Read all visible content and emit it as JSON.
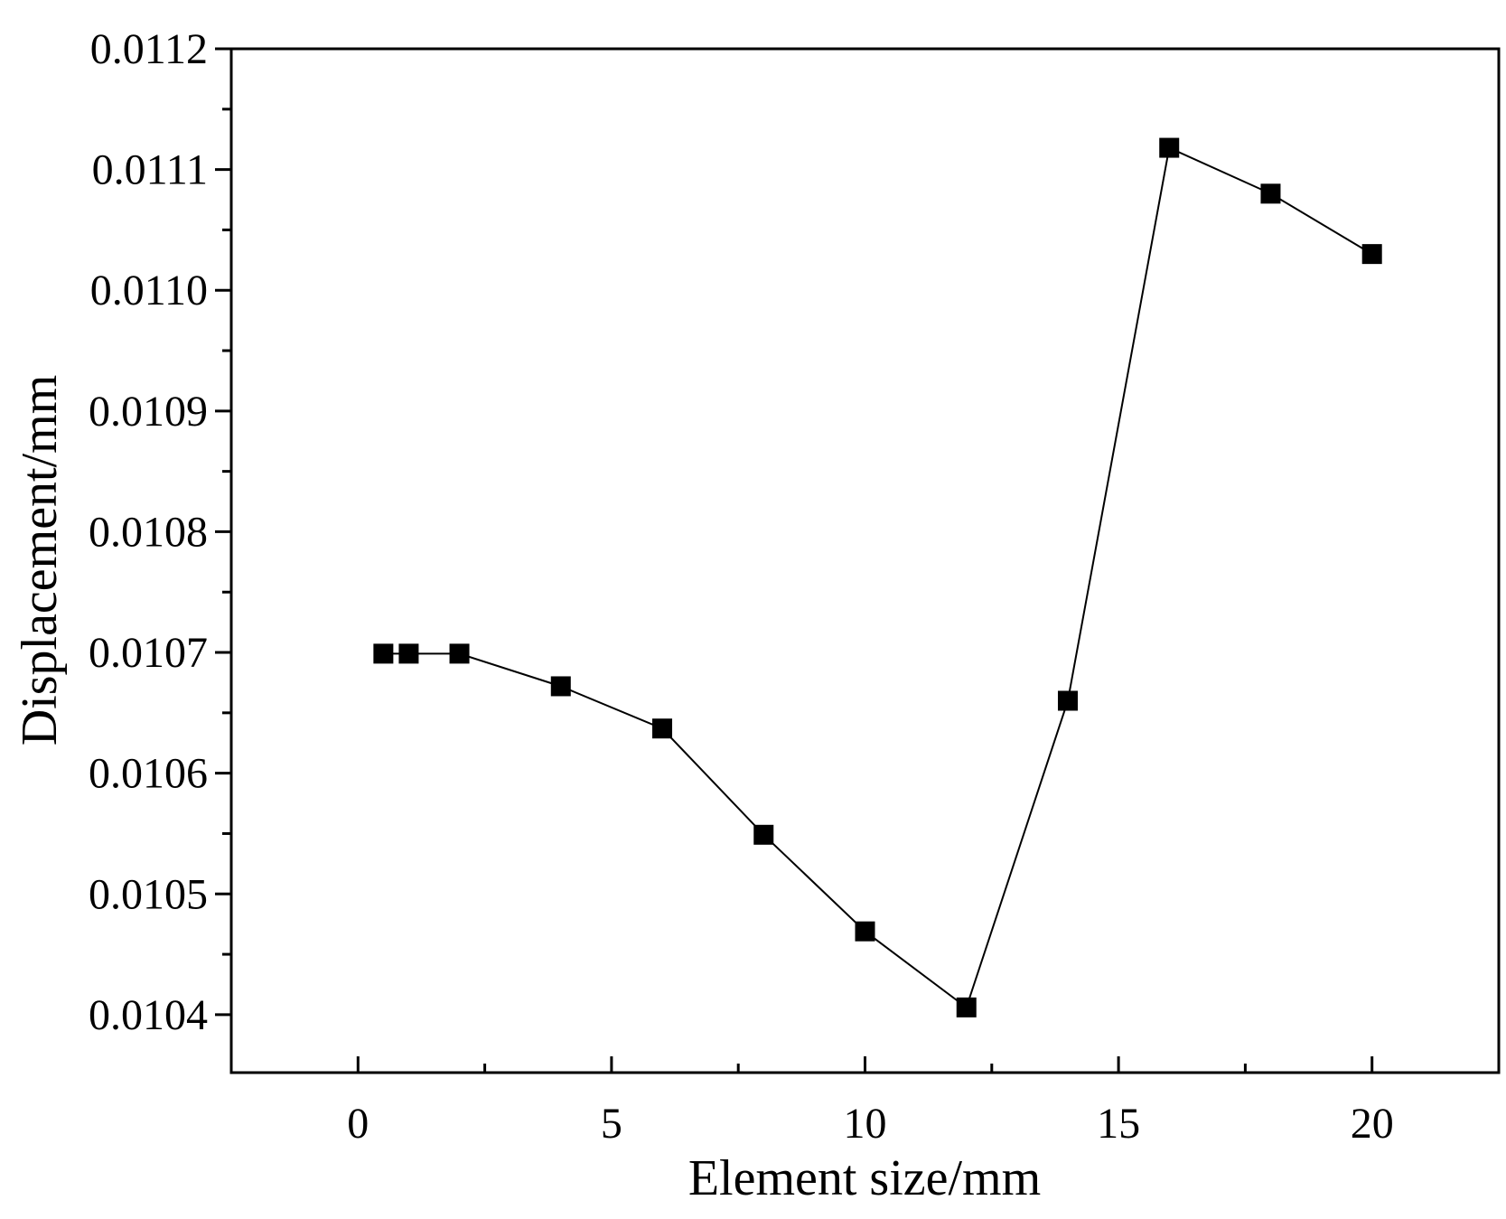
{
  "chart_data": {
    "type": "line",
    "title": "",
    "xlabel": "Element size/mm",
    "ylabel": "Displacement/mm",
    "xlim": [
      -2.5,
      22.5
    ],
    "ylim": [
      0.010352,
      0.0112
    ],
    "x_ticks": [
      0,
      5,
      10,
      15,
      20
    ],
    "x_tick_labels": [
      "0",
      "5",
      "10",
      "15",
      "20"
    ],
    "y_ticks": [
      0.0104,
      0.0105,
      0.0106,
      0.0107,
      0.0108,
      0.0109,
      0.011,
      0.0111,
      0.0112
    ],
    "y_tick_labels": [
      "0.0104",
      "0.0105",
      "0.0106",
      "0.0107",
      "0.0108",
      "0.0109",
      "0.0110",
      "0.0111",
      "0.0112"
    ],
    "grid": false,
    "legend": "none",
    "marker": "square",
    "color": "#000000",
    "series": [
      {
        "x": [
          0.5,
          1,
          2,
          4,
          6,
          8,
          10,
          12,
          14,
          16,
          18,
          20
        ],
        "y": [
          0.010699,
          0.010699,
          0.010699,
          0.010672,
          0.010637,
          0.010549,
          0.010469,
          0.010406,
          0.01066,
          0.011118,
          0.01108,
          0.01103
        ]
      }
    ]
  }
}
